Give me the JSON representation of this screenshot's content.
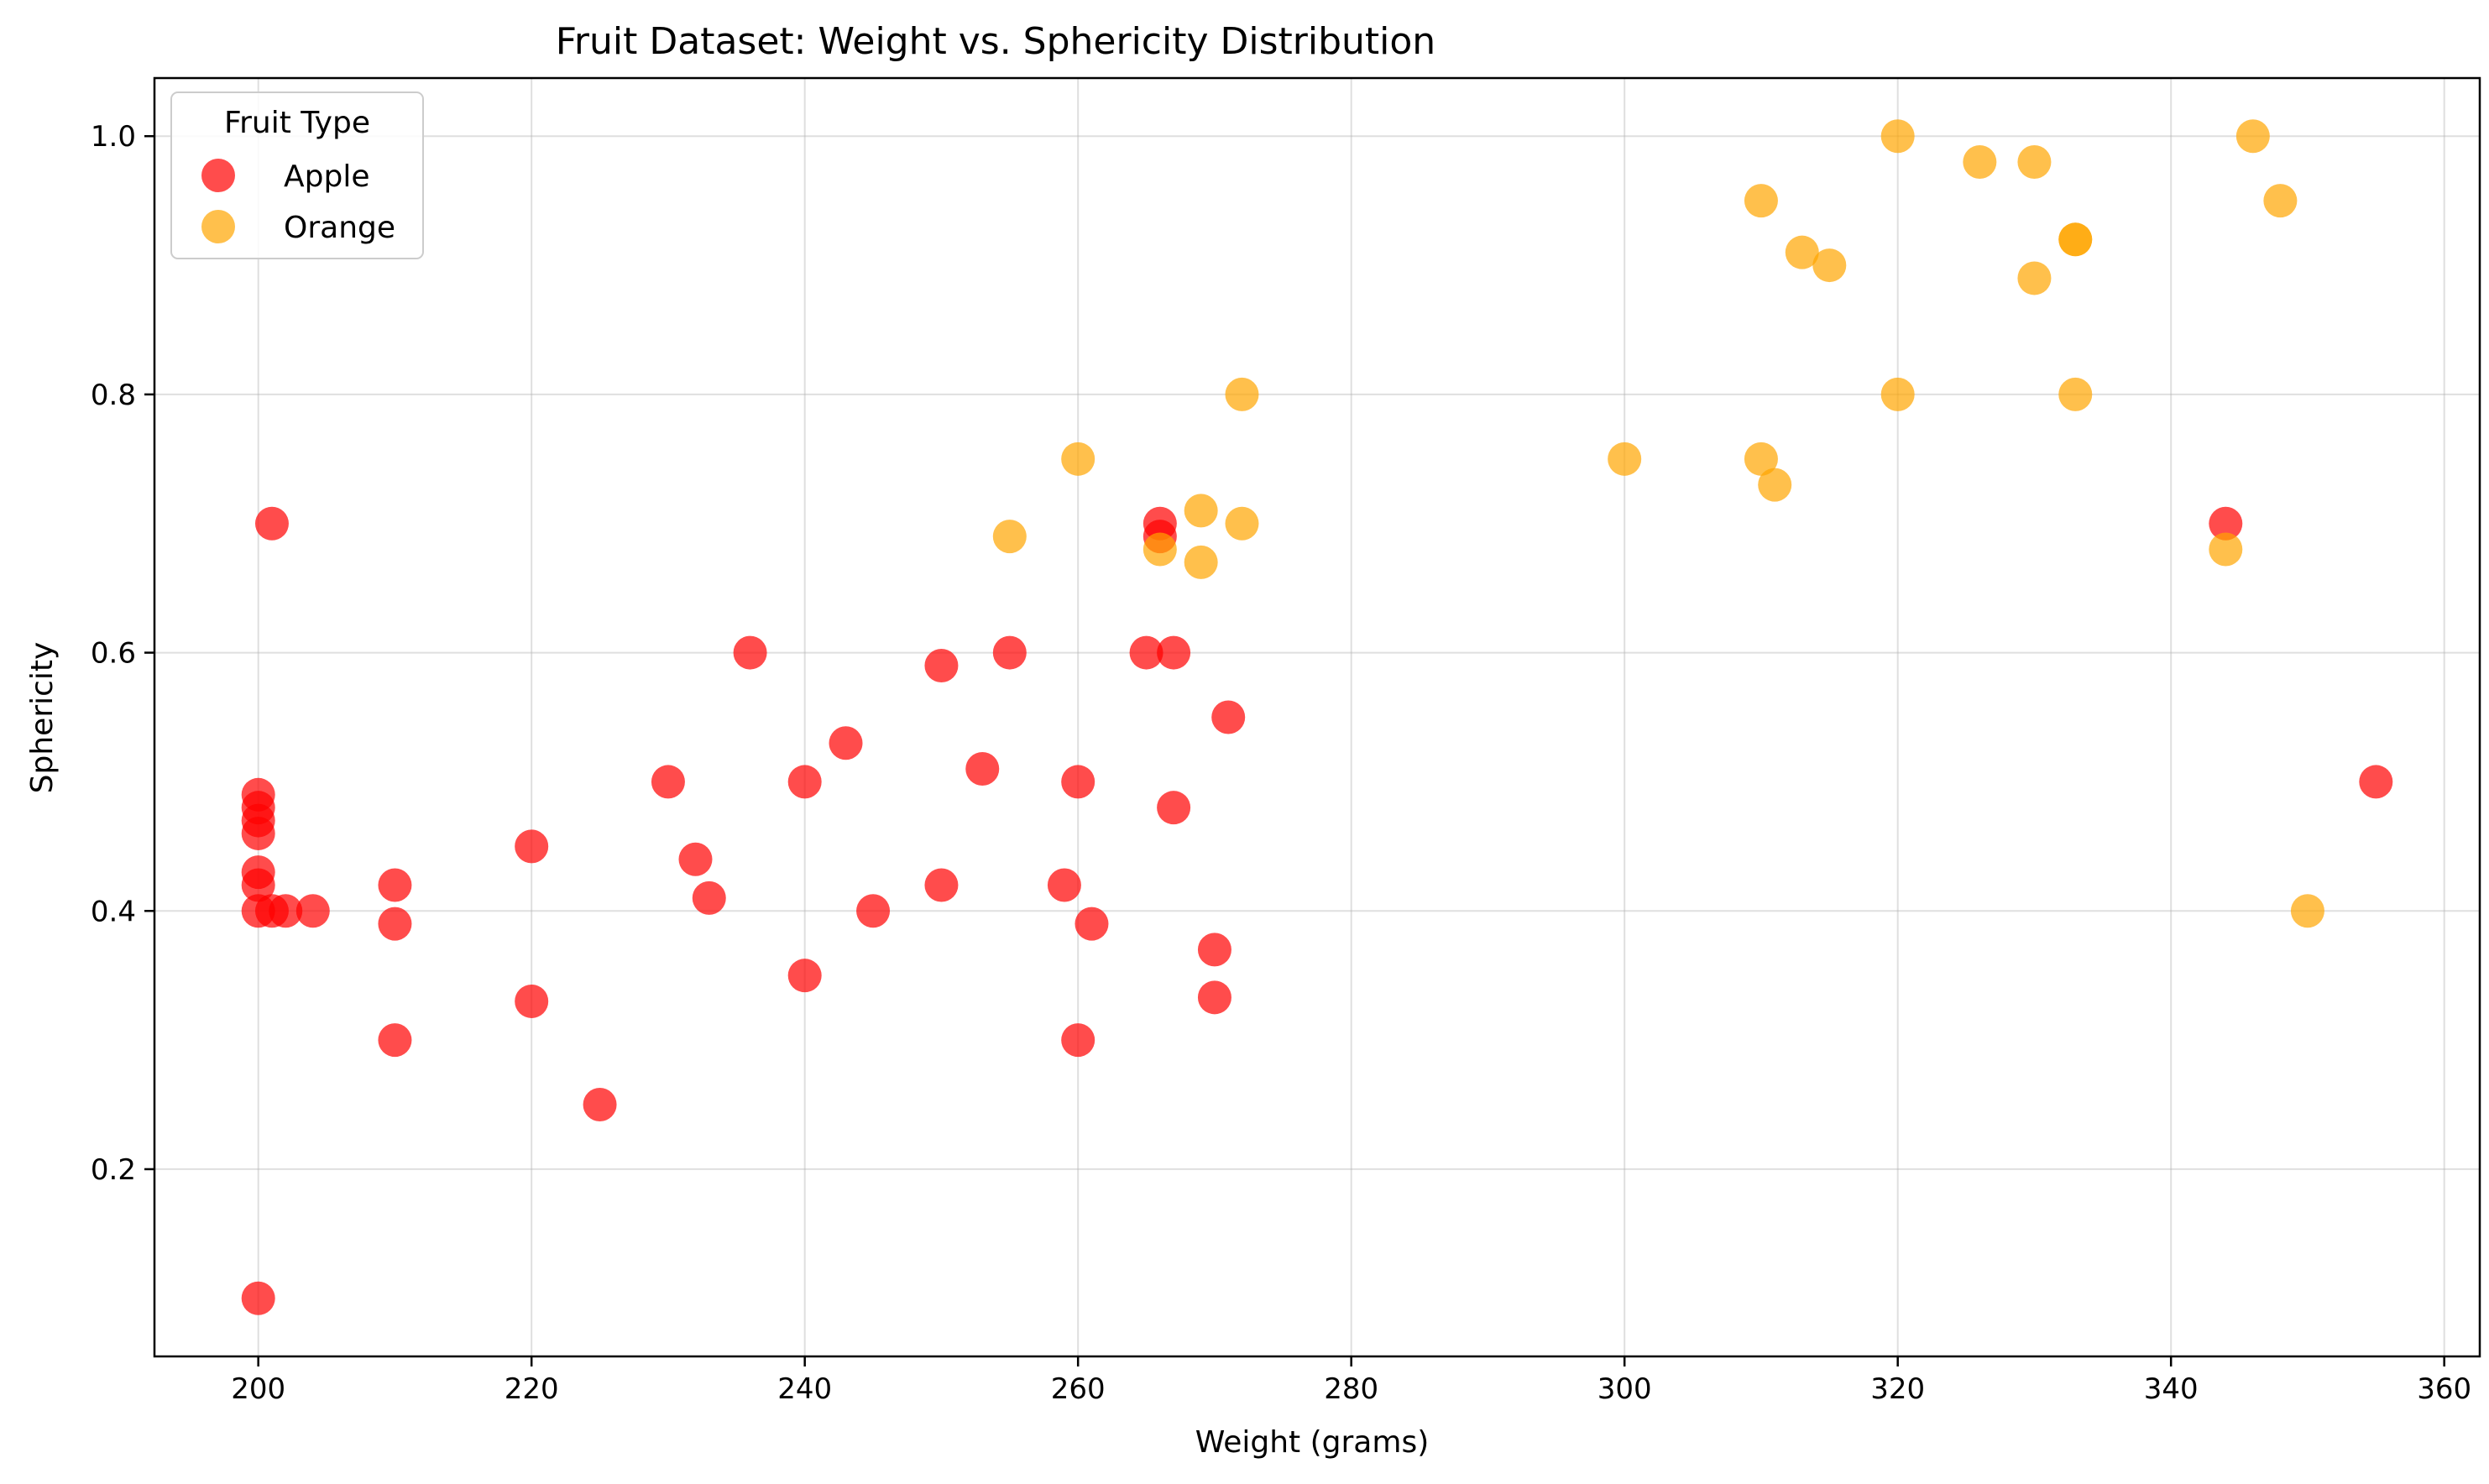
{
  "chart_data": {
    "type": "scatter",
    "title": "Fruit Dataset: Weight vs. Sphericity Distribution",
    "xlabel": "Weight (grams)",
    "ylabel": "Sphericity",
    "xlim": [
      192.4,
      362.6
    ],
    "ylim": [
      0.055,
      1.045
    ],
    "xticks": [
      200,
      220,
      240,
      260,
      280,
      300,
      320,
      340,
      360
    ],
    "yticks": [
      0.2,
      0.4,
      0.6,
      0.8,
      1.0
    ],
    "grid": true,
    "legend": {
      "title": "Fruit Type",
      "position": "top-left"
    },
    "series": [
      {
        "name": "Apple",
        "color": "#ff0000",
        "points": [
          [
            200,
            0.1
          ],
          [
            200,
            0.4
          ],
          [
            200,
            0.42
          ],
          [
            200,
            0.43
          ],
          [
            200,
            0.46
          ],
          [
            200,
            0.47
          ],
          [
            200,
            0.48
          ],
          [
            200,
            0.49
          ],
          [
            201,
            0.7
          ],
          [
            201,
            0.4
          ],
          [
            202,
            0.4
          ],
          [
            204,
            0.4
          ],
          [
            210,
            0.42
          ],
          [
            210,
            0.39
          ],
          [
            210,
            0.3
          ],
          [
            220,
            0.45
          ],
          [
            220,
            0.33
          ],
          [
            225,
            0.25
          ],
          [
            230,
            0.5
          ],
          [
            232,
            0.44
          ],
          [
            233,
            0.41
          ],
          [
            236,
            0.6
          ],
          [
            240,
            0.5
          ],
          [
            240,
            0.35
          ],
          [
            243,
            0.53
          ],
          [
            245,
            0.4
          ],
          [
            250,
            0.59
          ],
          [
            250,
            0.42
          ],
          [
            253,
            0.51
          ],
          [
            255,
            0.6
          ],
          [
            259,
            0.42
          ],
          [
            260,
            0.5
          ],
          [
            260,
            0.3
          ],
          [
            261,
            0.39
          ],
          [
            265,
            0.6
          ],
          [
            266,
            0.7
          ],
          [
            266,
            0.69
          ],
          [
            267,
            0.6
          ],
          [
            267,
            0.48
          ],
          [
            270,
            0.37
          ],
          [
            270,
            0.333
          ],
          [
            271,
            0.55
          ],
          [
            344,
            0.7
          ],
          [
            355,
            0.5
          ]
        ]
      },
      {
        "name": "Orange",
        "color": "#ffa500",
        "points": [
          [
            255,
            0.69
          ],
          [
            260,
            0.75
          ],
          [
            266,
            0.68
          ],
          [
            269,
            0.71
          ],
          [
            269,
            0.67
          ],
          [
            272,
            0.8
          ],
          [
            272,
            0.7
          ],
          [
            300,
            0.75
          ],
          [
            310,
            0.95
          ],
          [
            310,
            0.75
          ],
          [
            311,
            0.73
          ],
          [
            313,
            0.91
          ],
          [
            315,
            0.9
          ],
          [
            320,
            1.0
          ],
          [
            320,
            0.8
          ],
          [
            326,
            0.98
          ],
          [
            330,
            0.98
          ],
          [
            330,
            0.89
          ],
          [
            333,
            0.92
          ],
          [
            333,
            0.92
          ],
          [
            333,
            0.8
          ],
          [
            344,
            0.68
          ],
          [
            346,
            1.0
          ],
          [
            348,
            0.95
          ],
          [
            350,
            0.4
          ]
        ]
      }
    ]
  }
}
